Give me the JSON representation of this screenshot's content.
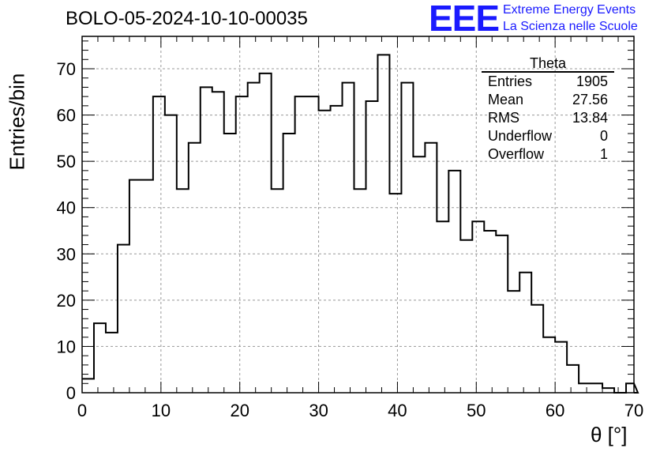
{
  "header": {
    "title": "BOLO-05-2024-10-10-00035",
    "logo_mark": "EEE",
    "logo_line1": "Extreme Energy Events",
    "logo_line2": "La Scienza nelle Scuole"
  },
  "stats": {
    "name": "Theta",
    "rows": [
      {
        "label": "Entries",
        "value": "1905"
      },
      {
        "label": "Mean",
        "value": "27.56"
      },
      {
        "label": "RMS",
        "value": "13.84"
      },
      {
        "label": "Underflow",
        "value": "0"
      },
      {
        "label": "Overflow",
        "value": "1"
      }
    ]
  },
  "chart_data": {
    "type": "bar",
    "histogram": true,
    "bin_width": 1.5,
    "x_start": 0,
    "values": [
      3,
      15,
      13,
      32,
      46,
      46,
      64,
      60,
      44,
      54,
      66,
      65,
      56,
      64,
      67,
      69,
      44,
      56,
      64,
      64,
      61,
      62,
      67,
      44,
      63,
      73,
      43,
      67,
      51,
      54,
      37,
      48,
      33,
      37,
      35,
      34,
      22,
      26,
      19,
      12,
      11,
      6,
      2,
      2,
      1,
      0,
      2,
      0
    ],
    "xlabel": "θ [°]",
    "ylabel": "Entries/bin",
    "xlim": [
      0,
      70
    ],
    "ylim": [
      0,
      77
    ],
    "xticks": [
      0,
      10,
      20,
      30,
      40,
      50,
      60,
      70
    ],
    "yticks": [
      0,
      10,
      20,
      30,
      40,
      50,
      60,
      70
    ],
    "grid": true,
    "colors": {
      "line": "#000000",
      "grid": "#999999",
      "logo": "#1a1aff"
    }
  }
}
